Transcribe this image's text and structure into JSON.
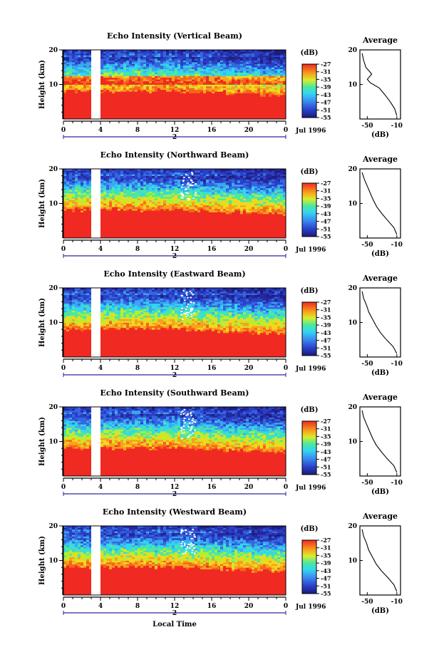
{
  "figure": {
    "x_axis_label": "Local Time",
    "date_label": "Jul 1996",
    "day_marker": "2",
    "colorbar_unit": "(dB)",
    "profile_title": "Average",
    "profile_xlabel": "(dB)"
  },
  "chart_data": [
    {
      "type": "heatmap",
      "title": "Echo Intensity (Vertical Beam)",
      "ylabel": "Height (km)",
      "x_ticks": [
        "0",
        "4",
        "8",
        "12",
        "16",
        "20",
        "0"
      ],
      "xlim_hours": [
        0,
        24
      ],
      "y_ticks": [
        "10",
        "20"
      ],
      "ylim_km": [
        0,
        20
      ],
      "data_gap_hours": [
        3.0,
        4.0
      ],
      "colorbar_ticks": [
        "-27",
        "-31",
        "-35",
        "-39",
        "-43",
        "-47",
        "-51",
        "-55"
      ],
      "colorbar_range_db": [
        -55,
        -27
      ],
      "inset": {
        "type": "line",
        "title": "Average",
        "xlabel": "(dB)",
        "x_ticks": [
          "-50",
          "-10"
        ],
        "xlim_db": [
          -60,
          -5
        ],
        "y_ticks": [
          "10",
          "20"
        ],
        "ylim_km": [
          0,
          20
        ],
        "profile": [
          [
            -10,
            1
          ],
          [
            -13,
            3
          ],
          [
            -19,
            5
          ],
          [
            -26,
            7
          ],
          [
            -34,
            9
          ],
          [
            -46,
            10.5
          ],
          [
            -50,
            11.5
          ],
          [
            -44,
            13
          ],
          [
            -52,
            15
          ],
          [
            -55,
            17
          ],
          [
            -57,
            19
          ]
        ]
      }
    },
    {
      "type": "heatmap",
      "title": "Echo Intensity (Northward Beam)",
      "ylabel": "Height (km)",
      "x_ticks": [
        "0",
        "4",
        "8",
        "12",
        "16",
        "20",
        "0"
      ],
      "xlim_hours": [
        0,
        24
      ],
      "y_ticks": [
        "10",
        "20"
      ],
      "ylim_km": [
        0,
        20
      ],
      "data_gap_hours": [
        3.0,
        4.0
      ],
      "colorbar_ticks": [
        "-27",
        "-31",
        "-35",
        "-39",
        "-43",
        "-47",
        "-51",
        "-55"
      ],
      "colorbar_range_db": [
        -55,
        -27
      ],
      "inset": {
        "type": "line",
        "title": "Average",
        "xlabel": "(dB)",
        "x_ticks": [
          "-50",
          "-10"
        ],
        "xlim_db": [
          -60,
          -5
        ],
        "y_ticks": [
          "10",
          "20"
        ],
        "ylim_km": [
          0,
          20
        ],
        "profile": [
          [
            -10,
            1
          ],
          [
            -14,
            3
          ],
          [
            -22,
            5
          ],
          [
            -30,
            7
          ],
          [
            -37,
            9
          ],
          [
            -42,
            11
          ],
          [
            -46,
            13
          ],
          [
            -50,
            15
          ],
          [
            -54,
            17
          ],
          [
            -57,
            19
          ]
        ]
      }
    },
    {
      "type": "heatmap",
      "title": "Echo Intensity (Eastward Beam)",
      "ylabel": "Height (km)",
      "x_ticks": [
        "0",
        "4",
        "8",
        "12",
        "16",
        "20",
        "0"
      ],
      "xlim_hours": [
        0,
        24
      ],
      "y_ticks": [
        "10",
        "20"
      ],
      "ylim_km": [
        0,
        20
      ],
      "data_gap_hours": [
        3.0,
        4.0
      ],
      "colorbar_ticks": [
        "-27",
        "-31",
        "-35",
        "-39",
        "-43",
        "-47",
        "-51",
        "-55"
      ],
      "colorbar_range_db": [
        -55,
        -27
      ],
      "inset": {
        "type": "line",
        "title": "Average",
        "xlabel": "(dB)",
        "x_ticks": [
          "-50",
          "-10"
        ],
        "xlim_db": [
          -60,
          -5
        ],
        "y_ticks": [
          "10",
          "20"
        ],
        "ylim_km": [
          0,
          20
        ],
        "profile": [
          [
            -10,
            1
          ],
          [
            -15,
            3
          ],
          [
            -24,
            5
          ],
          [
            -32,
            7
          ],
          [
            -38,
            9
          ],
          [
            -43,
            11
          ],
          [
            -48,
            13
          ],
          [
            -51,
            15
          ],
          [
            -55,
            17
          ],
          [
            -57,
            19
          ]
        ]
      }
    },
    {
      "type": "heatmap",
      "title": "Echo Intensity (Southward Beam)",
      "ylabel": "Height (km)",
      "x_ticks": [
        "0",
        "4",
        "8",
        "12",
        "16",
        "20",
        "0"
      ],
      "xlim_hours": [
        0,
        24
      ],
      "y_ticks": [
        "10",
        "20"
      ],
      "ylim_km": [
        0,
        20
      ],
      "data_gap_hours": [
        3.0,
        4.0
      ],
      "colorbar_ticks": [
        "-27",
        "-31",
        "-35",
        "-39",
        "-43",
        "-47",
        "-51",
        "-55"
      ],
      "colorbar_range_db": [
        -55,
        -27
      ],
      "inset": {
        "type": "line",
        "title": "Average",
        "xlabel": "(dB)",
        "x_ticks": [
          "-50",
          "-10"
        ],
        "xlim_db": [
          -60,
          -5
        ],
        "y_ticks": [
          "10",
          "20"
        ],
        "ylim_km": [
          0,
          20
        ],
        "profile": [
          [
            -10,
            1
          ],
          [
            -14,
            3
          ],
          [
            -23,
            5
          ],
          [
            -31,
            7
          ],
          [
            -38,
            9
          ],
          [
            -43,
            11
          ],
          [
            -47,
            13
          ],
          [
            -51,
            15
          ],
          [
            -55,
            17
          ],
          [
            -57,
            19
          ]
        ]
      }
    },
    {
      "type": "heatmap",
      "title": "Echo Intensity (Westward Beam)",
      "ylabel": "Height (km)",
      "x_ticks": [
        "0",
        "4",
        "8",
        "12",
        "16",
        "20",
        "0"
      ],
      "xlim_hours": [
        0,
        24
      ],
      "y_ticks": [
        "10",
        "20"
      ],
      "ylim_km": [
        0,
        20
      ],
      "data_gap_hours": [
        3.0,
        4.0
      ],
      "colorbar_ticks": [
        "-27",
        "-31",
        "-35",
        "-39",
        "-43",
        "-47",
        "-51",
        "-55"
      ],
      "colorbar_range_db": [
        -55,
        -27
      ],
      "inset": {
        "type": "line",
        "title": "Average",
        "xlabel": "(dB)",
        "x_ticks": [
          "-50",
          "-10"
        ],
        "xlim_db": [
          -60,
          -5
        ],
        "y_ticks": [
          "10",
          "20"
        ],
        "ylim_km": [
          0,
          20
        ],
        "profile": [
          [
            -10,
            1
          ],
          [
            -14,
            3
          ],
          [
            -22,
            5
          ],
          [
            -31,
            7
          ],
          [
            -38,
            9
          ],
          [
            -43,
            11
          ],
          [
            -48,
            13
          ],
          [
            -51,
            15
          ],
          [
            -55,
            17
          ],
          [
            -57,
            19
          ]
        ]
      }
    }
  ]
}
